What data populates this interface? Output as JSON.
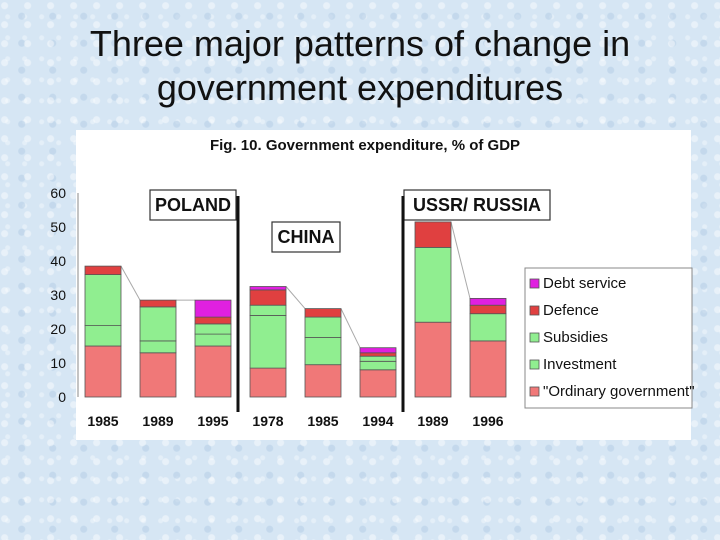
{
  "slide": {
    "title_line1": "Three major patterns of change in",
    "title_line2": "government expenditures"
  },
  "chart_data": {
    "type": "bar",
    "stacked": true,
    "title": "Fig. 10. Government expenditure, % of GDP",
    "xlabel": "",
    "ylabel": "",
    "ylim": [
      0,
      60
    ],
    "yticks": [
      0,
      10,
      20,
      30,
      40,
      50,
      60
    ],
    "categories": [
      "1985",
      "1989",
      "1995",
      "1978",
      "1985",
      "1994",
      "1989",
      "1996"
    ],
    "groups": [
      {
        "label": "POLAND",
        "start": 0,
        "end": 2
      },
      {
        "label": "CHINA",
        "start": 3,
        "end": 5
      },
      {
        "label": "USSR/ RUSSIA",
        "start": 6,
        "end": 7
      }
    ],
    "series": [
      {
        "name": "\"Ordinary government\"",
        "color": "#f07878",
        "values": [
          15,
          13,
          15,
          8.5,
          9.5,
          8,
          22,
          16.5
        ]
      },
      {
        "name": "Investment",
        "color": "#90ee90",
        "values": [
          6,
          3.5,
          3.5,
          15.5,
          8,
          2.5,
          0,
          0
        ]
      },
      {
        "name": "Subsidies",
        "color": "#90ee90",
        "values": [
          15,
          10,
          3,
          3,
          6,
          1.5,
          22,
          8
        ]
      },
      {
        "name": "Defence",
        "color": "#e04040",
        "values": [
          2.5,
          2,
          2,
          4.5,
          2.5,
          1,
          7.5,
          2.5
        ]
      },
      {
        "name": "Debt service",
        "color": "#e020e0",
        "values": [
          0,
          0,
          5,
          1,
          0,
          1.5,
          0,
          2
        ]
      }
    ],
    "legend_order": [
      "Debt service",
      "Defence",
      "Subsidies",
      "Investment",
      "\"Ordinary government\""
    ],
    "legend_position": "right"
  }
}
